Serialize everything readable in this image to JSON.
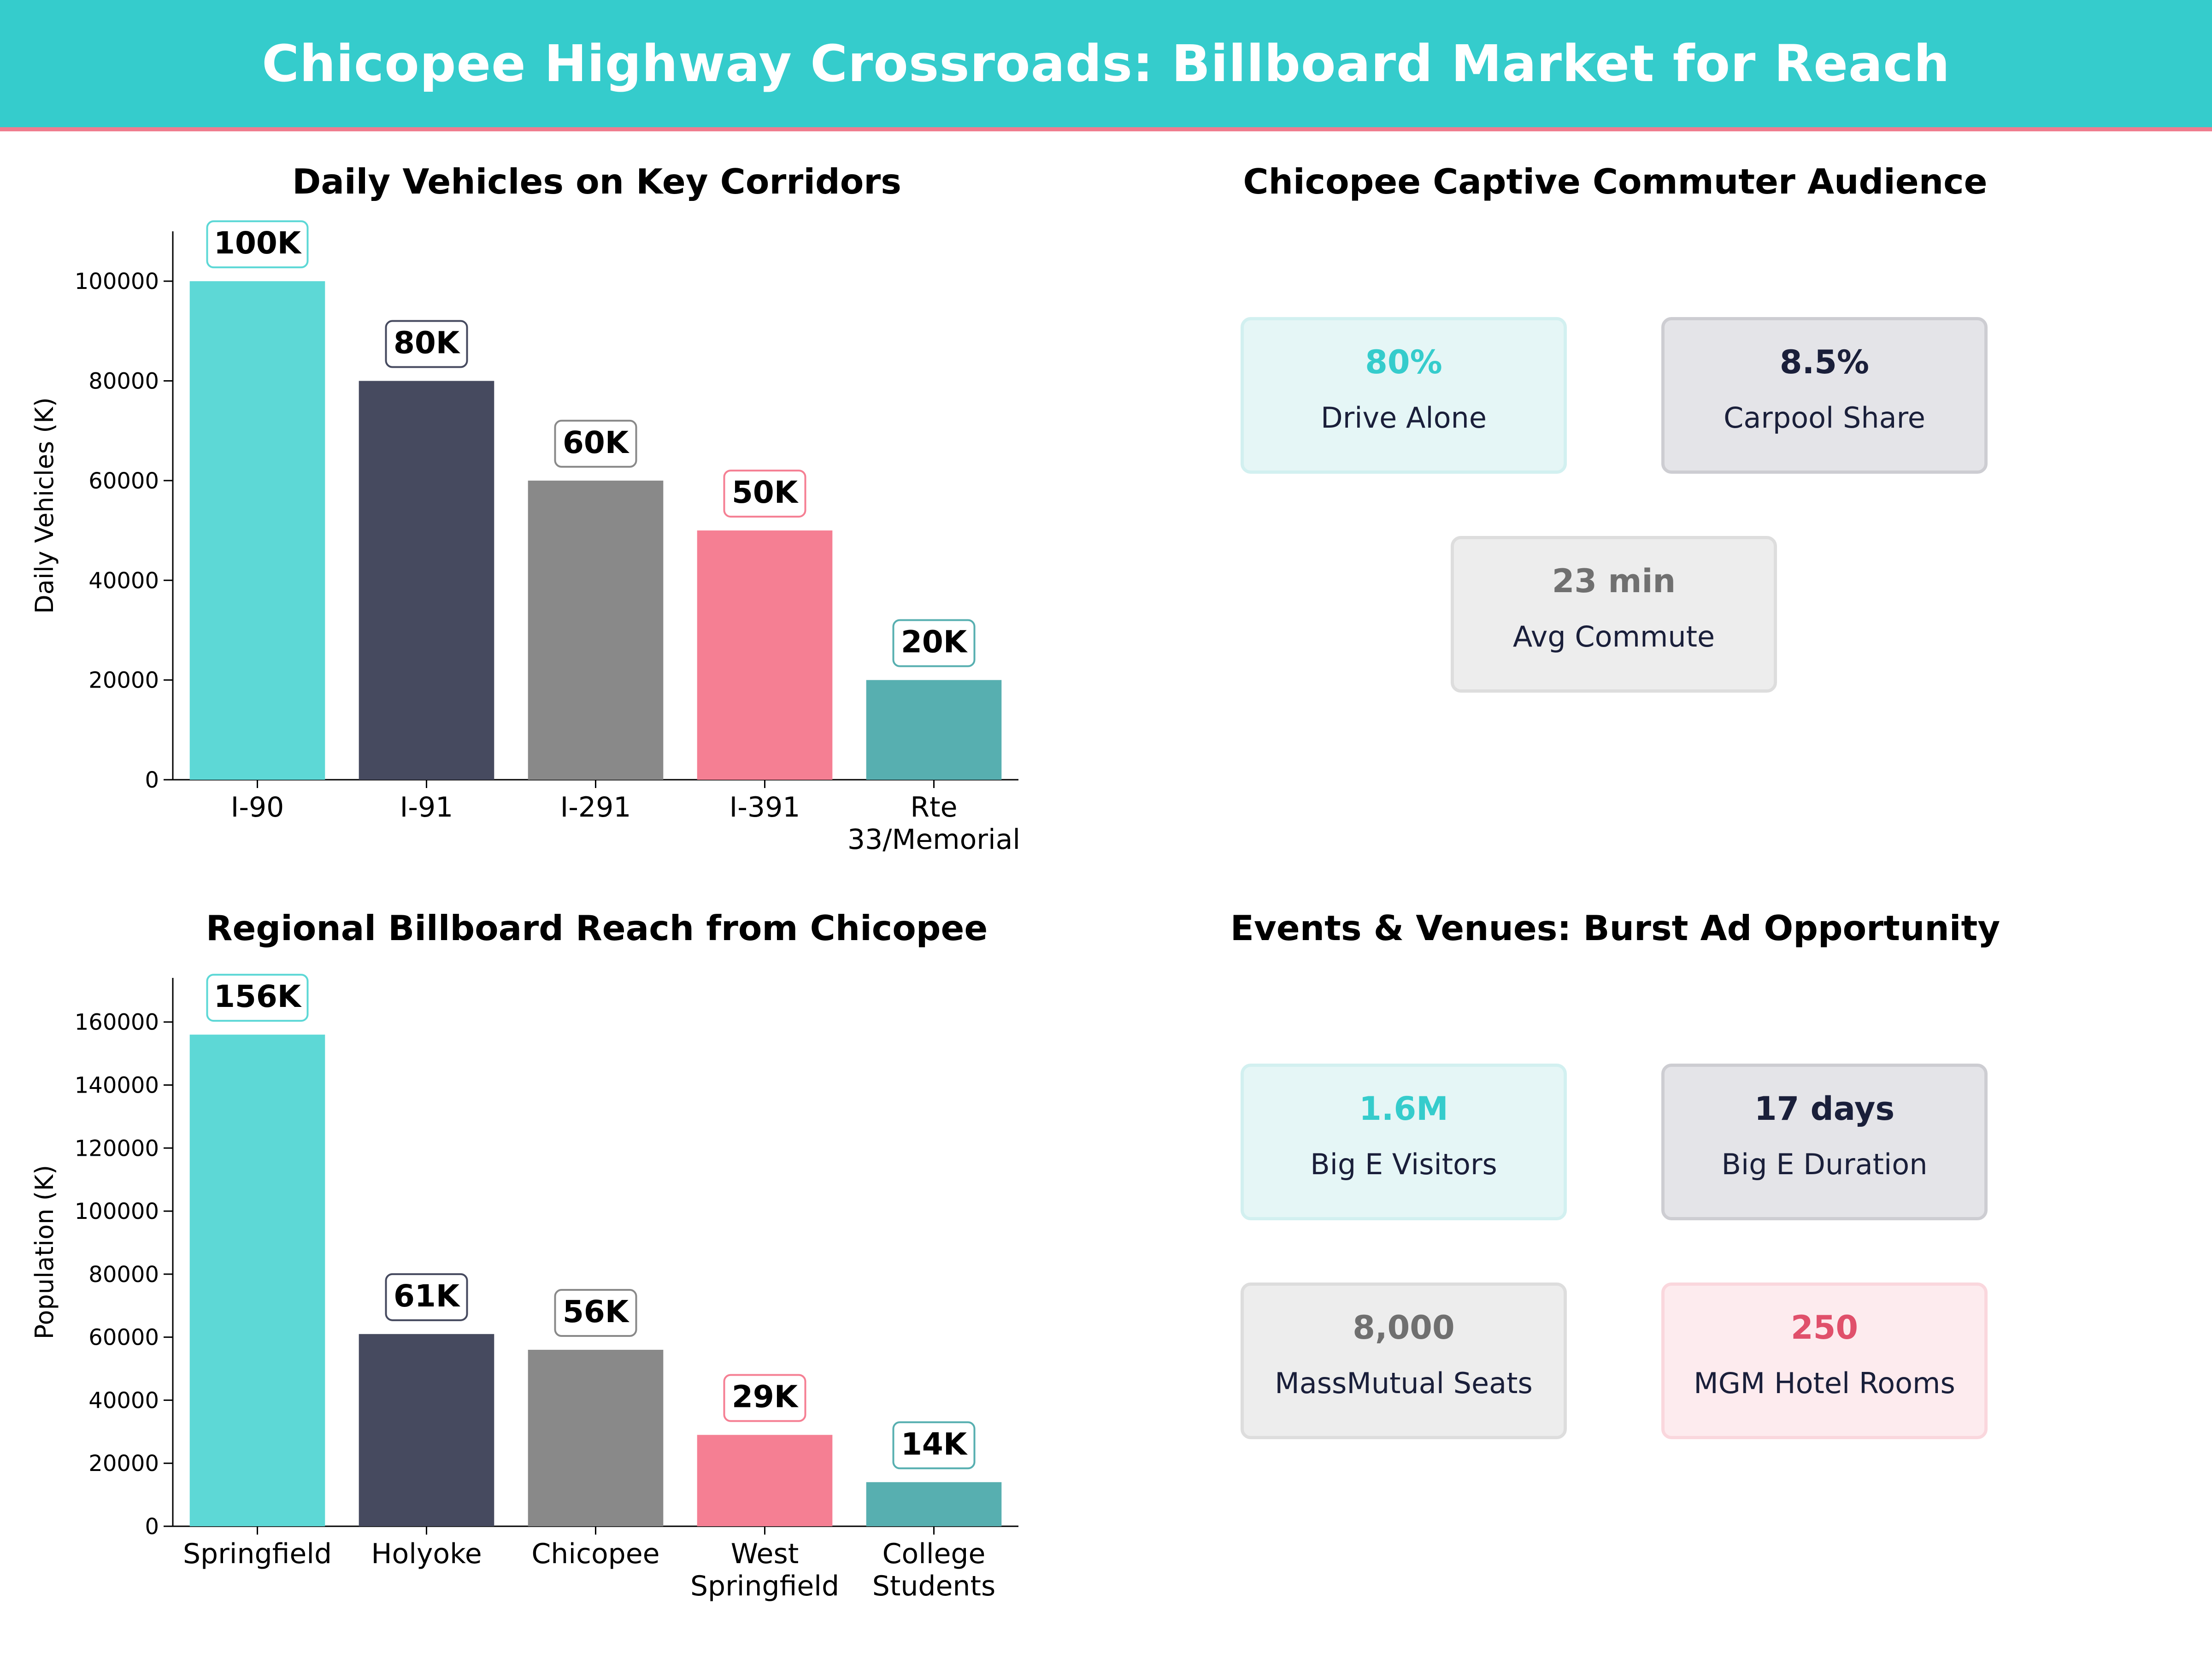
{
  "header": {
    "title": "Chicopee Highway Crossroads: Billboard Market for Reach"
  },
  "colors": {
    "teal": "#5DD8D6",
    "navy": "#464A5F",
    "gray": "#898989",
    "pink": "#F57F93",
    "darkteal": "#57AFB0",
    "headerbg": "#35CCCC",
    "accent": "#F07D8F"
  },
  "panels": {
    "vehicles_title": "Daily Vehicles on Key Corridors",
    "commuter_title": "Chicopee Captive Commuter Audience",
    "reach_title": "Regional Billboard Reach from Chicopee",
    "events_title": "Events & Venues: Burst Ad Opportunity"
  },
  "chart_data": [
    {
      "type": "bar",
      "title": "Daily Vehicles on Key Corridors",
      "xlabel": "",
      "ylabel": "Daily Vehicles (K)",
      "categories": [
        [
          "I-90"
        ],
        [
          "I-91"
        ],
        [
          "I-291"
        ],
        [
          "I-391"
        ],
        [
          "Rte",
          "33/Memorial"
        ]
      ],
      "values": [
        100000,
        80000,
        60000,
        50000,
        20000
      ],
      "labels": [
        "100K",
        "80K",
        "60K",
        "50K",
        "20K"
      ],
      "yticks": [
        0,
        20000,
        40000,
        60000,
        80000,
        100000
      ],
      "ylim": [
        0,
        110000
      ],
      "colors": [
        "#5DD8D6",
        "#464A5F",
        "#898989",
        "#F57F93",
        "#57AFB0"
      ]
    },
    {
      "type": "bar",
      "title": "Regional Billboard Reach from Chicopee",
      "xlabel": "",
      "ylabel": "Population (K)",
      "categories": [
        [
          "Springfield"
        ],
        [
          "Holyoke"
        ],
        [
          "Chicopee"
        ],
        [
          "West",
          "Springfield"
        ],
        [
          "College",
          "Students"
        ]
      ],
      "values": [
        156000,
        61000,
        56000,
        29000,
        14000
      ],
      "labels": [
        "156K",
        "61K",
        "56K",
        "29K",
        "14K"
      ],
      "yticks": [
        0,
        20000,
        40000,
        60000,
        80000,
        100000,
        120000,
        140000,
        160000
      ],
      "ylim": [
        0,
        174000
      ],
      "colors": [
        "#5DD8D6",
        "#464A5F",
        "#898989",
        "#F57F93",
        "#57AFB0"
      ]
    }
  ],
  "commuter_cards": [
    {
      "value": "80%",
      "label": "Drive Alone",
      "color": "#35CCCC",
      "bg": "#E5F6F6",
      "border": "#D2F0F0"
    },
    {
      "value": "8.5%",
      "label": "Carpool Share",
      "color": "#1a1f3a",
      "bg": "#E4E4E8",
      "border": "#CDCDD2"
    },
    {
      "value": "23 min",
      "label": "Avg Commute",
      "color": "#707070",
      "bg": "#EDEDED",
      "border": "#DDDDDD"
    }
  ],
  "event_cards": [
    {
      "value": "1.6M",
      "label": "Big E Visitors",
      "color": "#35CCCC",
      "bg": "#E5F6F6",
      "border": "#D2F0F0"
    },
    {
      "value": "17 days",
      "label": "Big E Duration",
      "color": "#1a1f3a",
      "bg": "#E4E4E8",
      "border": "#CDCDD2"
    },
    {
      "value": "8,000",
      "label": "MassMutual Seats",
      "color": "#707070",
      "bg": "#EDEDED",
      "border": "#DDDDDD"
    },
    {
      "value": "250",
      "label": "MGM Hotel Rooms",
      "color": "#E0506B",
      "bg": "#FDEBEE",
      "border": "#FAD7DD"
    }
  ]
}
